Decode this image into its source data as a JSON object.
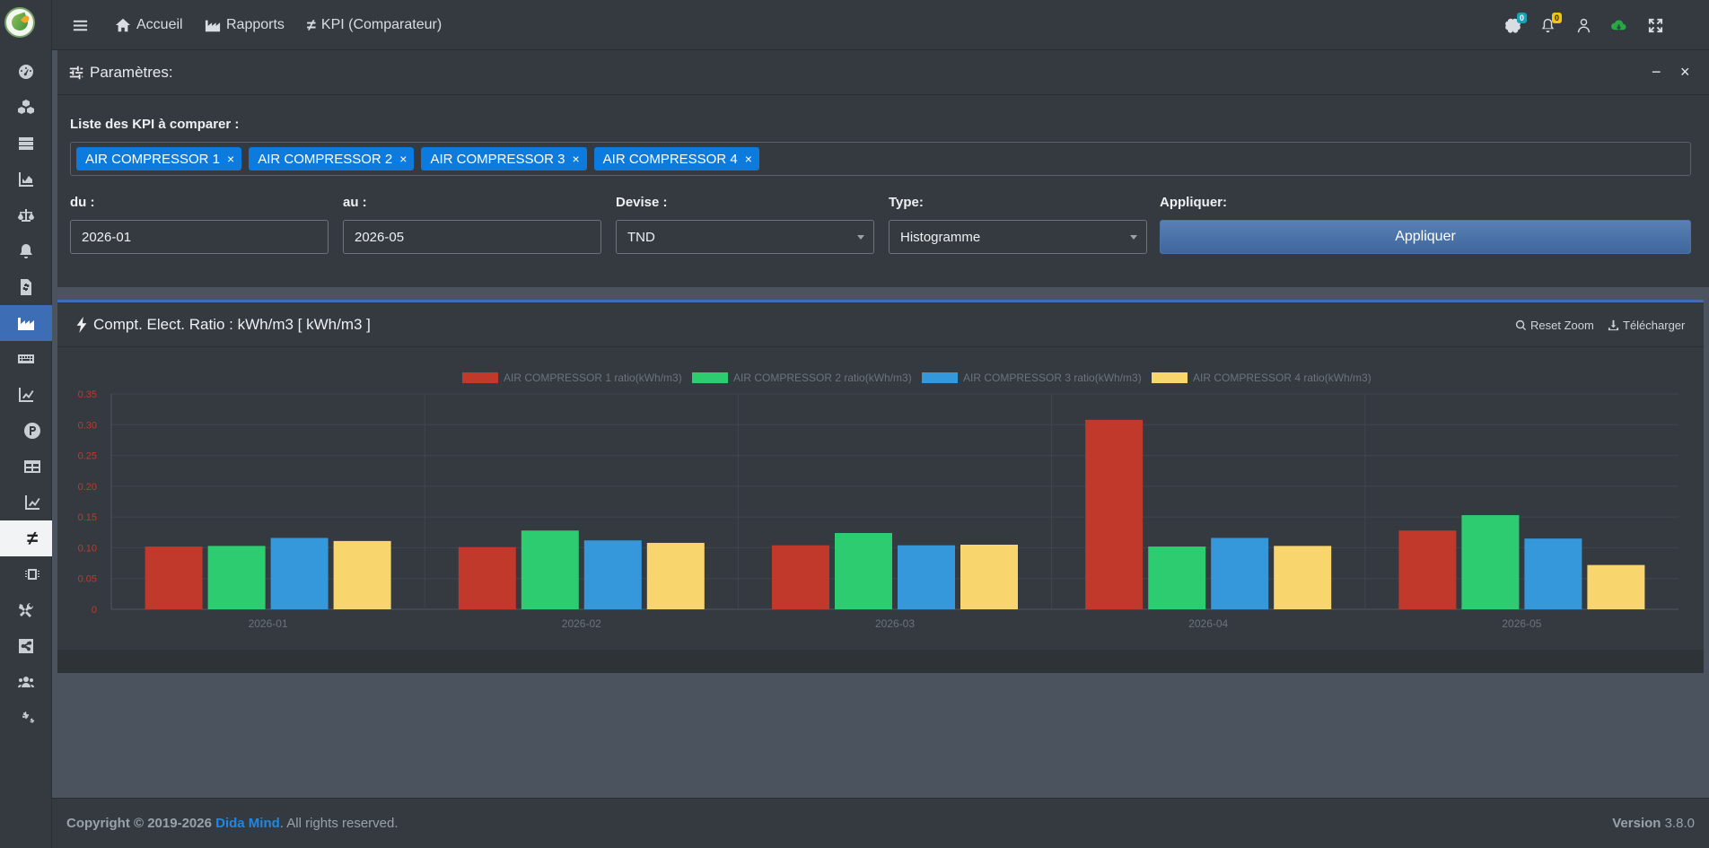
{
  "topbar": {
    "home_label": "Accueil",
    "reports_label": "Rapports",
    "kpi_label": "KPI (Comparateur)",
    "brain_badge": "0",
    "bell_badge": "0"
  },
  "params": {
    "title": "Paramètres:",
    "kpi_list_label": "Liste des KPI à comparer :",
    "tags": [
      "AIR COMPRESSOR 1",
      "AIR COMPRESSOR 2",
      "AIR COMPRESSOR 3",
      "AIR COMPRESSOR 4"
    ],
    "tag_remove": "×",
    "from_label": "du :",
    "from_value": "2026-01",
    "to_label": "au :",
    "to_value": "2026-05",
    "currency_label": "Devise :",
    "currency_value": "TND",
    "type_label": "Type:",
    "type_value": "Histogramme",
    "apply_label": "Appliquer:",
    "apply_button": "Appliquer",
    "minimize": "−",
    "close": "×"
  },
  "chart_card": {
    "title": "Compt. Elect. Ratio : kWh/m3 [ kWh/m3 ]",
    "reset_zoom": "Reset Zoom",
    "download": "Télécharger"
  },
  "chart_data": {
    "type": "bar",
    "categories": [
      "2026-01",
      "2026-02",
      "2026-03",
      "2026-04",
      "2026-05"
    ],
    "series": [
      {
        "name": "AIR COMPRESSOR 1 ratio(kWh/m3)",
        "color": "#c0392b",
        "values": [
          0.102,
          0.101,
          0.104,
          0.308,
          0.128
        ]
      },
      {
        "name": "AIR COMPRESSOR 2 ratio(kWh/m3)",
        "color": "#2ecc71",
        "values": [
          0.103,
          0.128,
          0.124,
          0.102,
          0.153
        ]
      },
      {
        "name": "AIR COMPRESSOR 3 ratio(kWh/m3)",
        "color": "#3498db",
        "values": [
          0.116,
          0.112,
          0.104,
          0.116,
          0.115
        ]
      },
      {
        "name": "AIR COMPRESSOR 4 ratio(kWh/m3)",
        "color": "#f9d56e",
        "values": [
          0.111,
          0.108,
          0.105,
          0.103,
          0.072
        ]
      }
    ],
    "yticks": [
      "0",
      "0.05",
      "0.10",
      "0.15",
      "0.20",
      "0.25",
      "0.30",
      "0.35"
    ],
    "ylim": [
      0,
      0.35
    ],
    "legend_position": "top",
    "grid": true
  },
  "footer": {
    "copyright": "Copyright © 2019-2026",
    "brand": "Dida Mind",
    "rights": ". All rights reserved.",
    "version_label": "Version",
    "version_value": "3.8.0"
  }
}
